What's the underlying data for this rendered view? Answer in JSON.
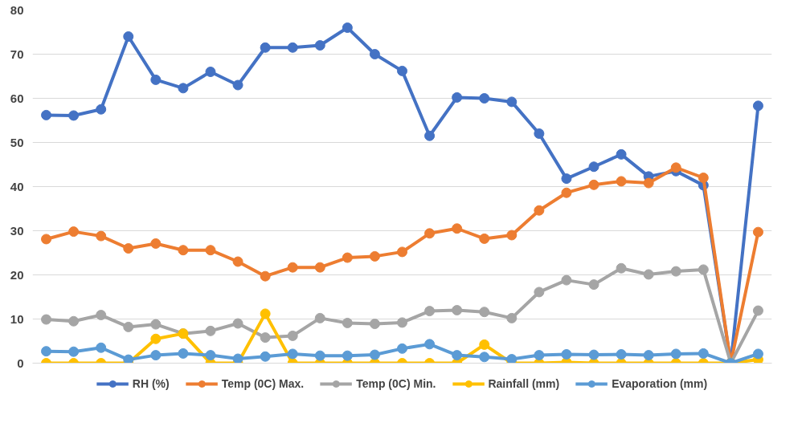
{
  "chart_data": {
    "type": "line",
    "categories": [
      null,
      null,
      null,
      null,
      null,
      null,
      null,
      null,
      null,
      null,
      null,
      null,
      null,
      null,
      null,
      null,
      null,
      null,
      null,
      null,
      null,
      null,
      null,
      null,
      null,
      null,
      null
    ],
    "series": [
      {
        "name": "RH (%)",
        "color": "#4472c4",
        "values": [
          56.2,
          56.1,
          57.5,
          74,
          64.2,
          62.3,
          66,
          63,
          71.5,
          71.5,
          72,
          76,
          70,
          66.2,
          51.5,
          60.2,
          60,
          59.2,
          52,
          41.8,
          44.5,
          47.3,
          42.3,
          43.5,
          40.3,
          0,
          58.3
        ]
      },
      {
        "name": "Temp (0C) Max.",
        "color": "#ed7d31",
        "values": [
          28.1,
          29.8,
          28.8,
          26,
          27.1,
          25.6,
          25.6,
          23,
          19.7,
          21.7,
          21.7,
          23.9,
          24.2,
          25.2,
          29.4,
          30.5,
          28.2,
          29,
          34.6,
          38.6,
          40.4,
          41.2,
          40.8,
          44.3,
          42,
          0,
          29.7
        ]
      },
      {
        "name": "Temp (0C) Min.",
        "color": "#a5a5a5",
        "values": [
          9.9,
          9.5,
          10.9,
          8.2,
          8.8,
          6.7,
          7.3,
          9,
          5.8,
          6.2,
          10.2,
          9.1,
          8.9,
          9.2,
          11.8,
          12,
          11.6,
          10.2,
          16.1,
          18.8,
          17.8,
          21.5,
          20.1,
          20.8,
          21.2,
          0,
          11.9
        ]
      },
      {
        "name": "Rainfall (mm)",
        "color": "#ffc000",
        "values": [
          0,
          0,
          0,
          0,
          5.5,
          6.7,
          0,
          0,
          11.2,
          0,
          0,
          0,
          0,
          0,
          0,
          0,
          4.2,
          0,
          0,
          0.2,
          0,
          0,
          0,
          0,
          0,
          0,
          0.8
        ]
      },
      {
        "name": "Evaporation (mm)",
        "color": "#5b9bd5",
        "values": [
          2.7,
          2.6,
          3.5,
          0.8,
          1.8,
          2.2,
          1.8,
          1,
          1.5,
          2.1,
          1.7,
          1.7,
          1.9,
          3.3,
          4.3,
          1.8,
          1.4,
          0.9,
          1.8,
          2,
          1.9,
          2,
          1.8,
          2.1,
          2.2,
          0,
          2.1
        ]
      }
    ],
    "ylim": [
      0,
      80
    ],
    "yticks": [
      0,
      10,
      20,
      30,
      40,
      50,
      60,
      70,
      80
    ],
    "grid": "y",
    "legend": "bottom",
    "marker": "circle",
    "line_style": "solid"
  }
}
